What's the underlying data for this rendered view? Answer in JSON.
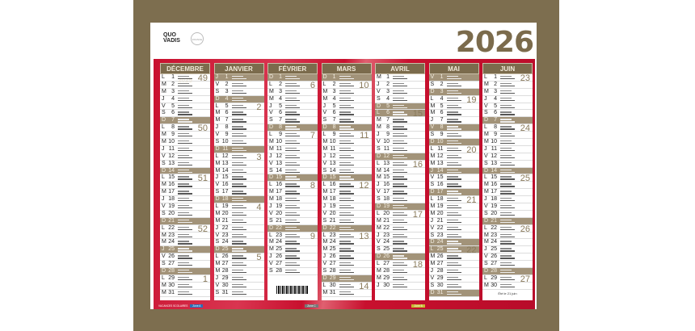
{
  "year": "2026",
  "brand": "QUO VADIS",
  "weekday_letters": [
    "L",
    "M",
    "M",
    "J",
    "V",
    "S",
    "D"
  ],
  "colors": {
    "olive": "#7d6e4f",
    "header": "#7b6b4c",
    "shaded": "#a29379",
    "red": "#c8102e",
    "zone_a": "#2a6fb8",
    "zone_b": "#c8b832",
    "zone_c": "#777777"
  },
  "months": [
    {
      "name": "DÉCEMBRE 2025",
      "start": 0,
      "days": 31,
      "shaded": [
        7,
        14,
        21,
        25,
        28
      ],
      "weeks": [
        [
          1,
          "49"
        ],
        [
          8,
          "50"
        ],
        [
          15,
          "51"
        ],
        [
          22,
          "52"
        ],
        [
          29,
          "1"
        ]
      ]
    },
    {
      "name": "JANVIER",
      "start": 3,
      "days": 31,
      "shaded": [
        1,
        4,
        11,
        18,
        25
      ],
      "weeks": [
        [
          5,
          "2"
        ],
        [
          12,
          "3"
        ],
        [
          19,
          "4"
        ],
        [
          26,
          "5"
        ]
      ]
    },
    {
      "name": "FÉVRIER",
      "start": 6,
      "days": 28,
      "shaded": [
        1,
        8,
        15,
        22
      ],
      "weeks": [
        [
          2,
          "6"
        ],
        [
          9,
          "7"
        ],
        [
          16,
          "8"
        ],
        [
          23,
          "9"
        ]
      ]
    },
    {
      "name": "MARS",
      "start": 6,
      "days": 31,
      "shaded": [
        1,
        8,
        15,
        22,
        29
      ],
      "weeks": [
        [
          2,
          "10"
        ],
        [
          9,
          "11"
        ],
        [
          16,
          "12"
        ],
        [
          23,
          "13"
        ],
        [
          30,
          "14"
        ]
      ]
    },
    {
      "name": "AVRIL",
      "start": 2,
      "days": 30,
      "shaded": [
        5,
        6,
        12,
        19,
        26
      ],
      "weeks": [
        [
          6,
          "15"
        ],
        [
          13,
          "16"
        ],
        [
          20,
          "17"
        ],
        [
          27,
          "18"
        ]
      ]
    },
    {
      "name": "MAI",
      "start": 4,
      "days": 31,
      "shaded": [
        1,
        3,
        8,
        10,
        14,
        17,
        24,
        25,
        31
      ],
      "weeks": [
        [
          4,
          "19"
        ],
        [
          11,
          "20"
        ],
        [
          18,
          "21"
        ],
        [
          25,
          "22"
        ]
      ]
    },
    {
      "name": "JUIN",
      "start": 0,
      "days": 30,
      "shaded": [
        7,
        14,
        21,
        28
      ],
      "weeks": [
        [
          1,
          "23"
        ],
        [
          8,
          "24"
        ],
        [
          15,
          "25"
        ],
        [
          22,
          "26"
        ],
        [
          29,
          "27"
        ]
      ]
    }
  ],
  "june_note": "Été le 21 juin",
  "footer": {
    "title": "VACANCES SCOLAIRES",
    "zones": [
      "Zone A",
      "Zone C",
      "Zone B"
    ]
  }
}
